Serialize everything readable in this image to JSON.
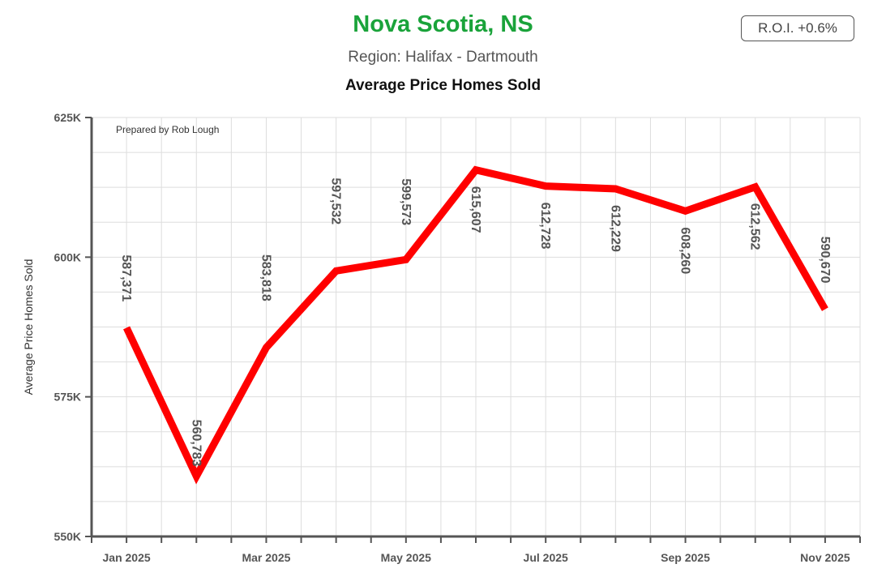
{
  "header": {
    "title": "Nova Scotia, NS",
    "subtitle": "Region: Halifax - Dartmouth",
    "roi": "R.O.I. +0.6%"
  },
  "colors": {
    "title": "#1aa33a",
    "line": "#ff0000",
    "grid": "#dddddd",
    "axis": "#555555"
  },
  "chart_data": {
    "type": "line",
    "title": "Average Price Homes Sold",
    "ylabel": "Average Price Homes Sold",
    "credit": "Prepared by Rob Lough",
    "x": [
      "Jan 2025",
      "Feb 2025",
      "Mar 2025",
      "Apr 2025",
      "May 2025",
      "Jun 2025",
      "Jul 2025",
      "Aug 2025",
      "Sep 2025",
      "Oct 2025",
      "Nov 2025"
    ],
    "x_tick_labels": [
      "Jan 2025",
      "Mar 2025",
      "May 2025",
      "Jul 2025",
      "Sep 2025",
      "Nov 2025"
    ],
    "series": [
      {
        "values": [
          587371,
          560783,
          583818,
          597532,
          599573,
          615607,
          612728,
          612229,
          608260,
          612562,
          590670
        ],
        "labels": [
          "587,371",
          "560,783",
          "583,818",
          "597,532",
          "599,573",
          "615,607",
          "612,728",
          "612,229",
          "608,260",
          "612,562",
          "590,670"
        ]
      }
    ],
    "ylim": [
      550000,
      625000
    ],
    "y_ticks": [
      550000,
      575000,
      600000,
      625000
    ],
    "y_tick_labels": [
      "550K",
      "575K",
      "600K",
      "625K"
    ],
    "grid": true
  }
}
